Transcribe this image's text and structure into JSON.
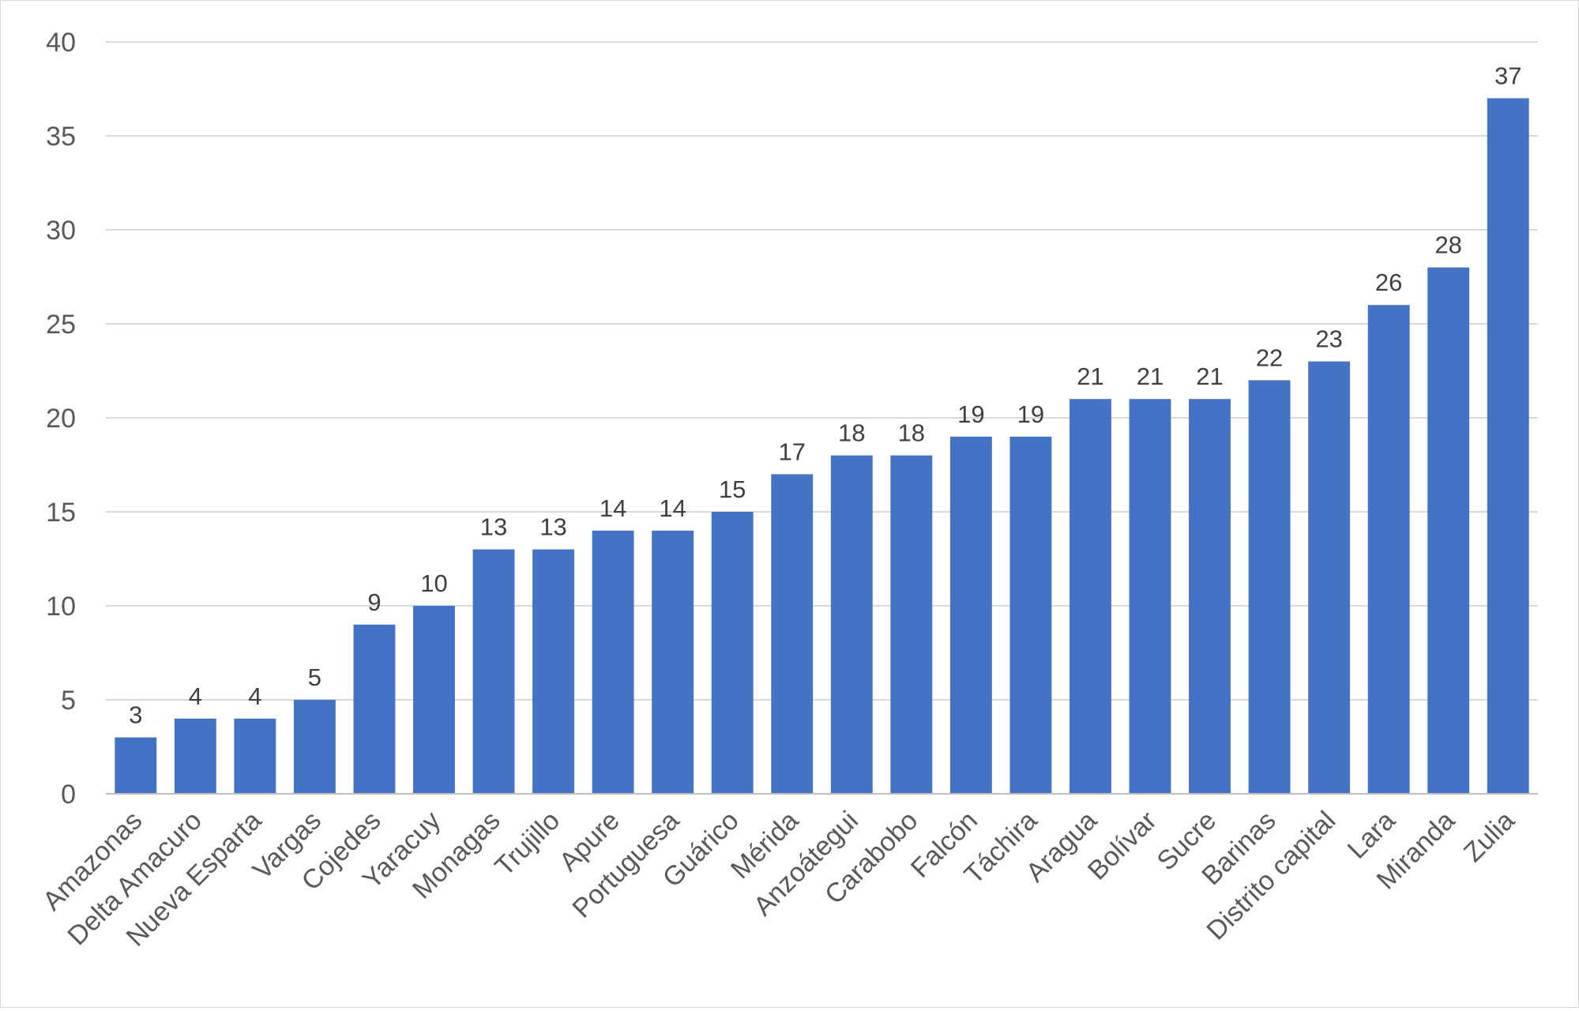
{
  "chart_data": {
    "type": "bar",
    "title": "",
    "xlabel": "",
    "ylabel": "",
    "ylim": [
      0,
      40
    ],
    "yticks": [
      0,
      5,
      10,
      15,
      20,
      25,
      30,
      35,
      40
    ],
    "grid": true,
    "legend": "none",
    "bar_color": "#4472c4",
    "categories": [
      "Amazonas",
      "Delta Amacuro",
      "Nueva Esparta",
      "Vargas",
      "Cojedes",
      "Yaracuy",
      "Monagas",
      "Trujillo",
      "Apure",
      "Portuguesa",
      "Guárico",
      "Mérida",
      "Anzoátegui",
      "Carabobo",
      "Falcón",
      "Táchira",
      "Aragua",
      "Bolívar",
      "Sucre",
      "Barinas",
      "Distrito capital",
      "Lara",
      "Miranda",
      "Zulia"
    ],
    "values": [
      3,
      4,
      4,
      5,
      9,
      10,
      13,
      13,
      14,
      14,
      15,
      17,
      18,
      18,
      19,
      19,
      21,
      21,
      21,
      22,
      23,
      26,
      28,
      37
    ]
  }
}
